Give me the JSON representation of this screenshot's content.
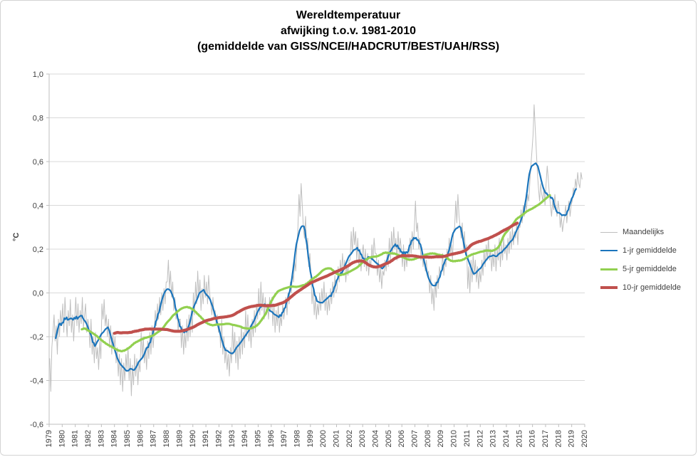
{
  "title_lines": {
    "line1": "Wereldtemperatuur",
    "line2": "afwijking t.o.v. 1981-2010",
    "line3": "(gemiddelde van GISS/NCEI/HADCRUT/BEST/UAH/RSS)"
  },
  "chart_data": {
    "type": "line",
    "title": "Wereldtemperatuur afwijking t.o.v. 1981-2010 (gemiddelde van GISS/NCEI/HADCRUT/BEST/UAH/RSS)",
    "xlabel": "",
    "ylabel": "°C",
    "xlim": [
      1979,
      2020
    ],
    "ylim": [
      -0.6,
      1.0
    ],
    "grid": true,
    "legend_position": "right",
    "x_ticks": [
      "1979",
      "1980",
      "1981",
      "1982",
      "1983",
      "1984",
      "1985",
      "1986",
      "1987",
      "1988",
      "1989",
      "1990",
      "1991",
      "1992",
      "1993",
      "1994",
      "1995",
      "1996",
      "1997",
      "1998",
      "1999",
      "2000",
      "2001",
      "2002",
      "2003",
      "2004",
      "2005",
      "2006",
      "2007",
      "2008",
      "2009",
      "2010",
      "2011",
      "2012",
      "2013",
      "2014",
      "2015",
      "2016",
      "2017",
      "2018",
      "2019",
      "2020"
    ],
    "y_ticks": [
      {
        "value": 1.0,
        "label": "1,0"
      },
      {
        "value": 0.8,
        "label": "0,8"
      },
      {
        "value": 0.6,
        "label": "0,6"
      },
      {
        "value": 0.4,
        "label": "0,4"
      },
      {
        "value": 0.2,
        "label": "0,2"
      },
      {
        "value": 0.0,
        "label": "0,0"
      },
      {
        "value": -0.2,
        "label": "-0,2"
      },
      {
        "value": -0.4,
        "label": "-0,4"
      },
      {
        "value": -0.6,
        "label": "-0,6"
      }
    ],
    "series": [
      {
        "name": "Maandelijks",
        "window_months": 1,
        "color": "#BFBFBF",
        "width": 1
      },
      {
        "name": "1-jr gemiddelde",
        "window_months": 12,
        "color": "#1B75BC",
        "width": 2.2
      },
      {
        "name": "5-jr gemiddelde",
        "window_months": 60,
        "color": "#92D050",
        "width": 3.2
      },
      {
        "name": "10-jr gemiddelde",
        "window_months": 120,
        "color": "#C0504D",
        "width": 4.2
      }
    ],
    "x_start_year": 1979,
    "monthly": [
      -0.3,
      -0.45,
      -0.25,
      -0.18,
      -0.1,
      -0.22,
      -0.15,
      -0.28,
      -0.12,
      -0.2,
      -0.08,
      -0.15,
      -0.05,
      -0.18,
      -0.02,
      -0.12,
      -0.2,
      -0.08,
      -0.15,
      -0.03,
      -0.18,
      -0.1,
      -0.22,
      -0.12,
      -0.02,
      -0.15,
      -0.05,
      -0.18,
      -0.08,
      -0.14,
      -0.02,
      -0.16,
      -0.1,
      -0.05,
      -0.18,
      -0.12,
      -0.15,
      -0.25,
      -0.12,
      -0.28,
      -0.2,
      -0.32,
      -0.18,
      -0.3,
      -0.25,
      -0.35,
      -0.22,
      -0.3,
      -0.05,
      -0.12,
      -0.03,
      -0.15,
      -0.1,
      -0.2,
      -0.12,
      -0.25,
      -0.15,
      -0.28,
      -0.18,
      -0.25,
      -0.2,
      -0.32,
      -0.25,
      -0.38,
      -0.28,
      -0.42,
      -0.3,
      -0.45,
      -0.32,
      -0.4,
      -0.28,
      -0.35,
      -0.25,
      -0.4,
      -0.3,
      -0.47,
      -0.33,
      -0.42,
      -0.28,
      -0.38,
      -0.3,
      -0.42,
      -0.32,
      -0.36,
      -0.18,
      -0.3,
      -0.2,
      -0.32,
      -0.25,
      -0.35,
      -0.22,
      -0.3,
      -0.18,
      -0.28,
      -0.15,
      -0.25,
      -0.18,
      -0.08,
      -0.15,
      -0.05,
      -0.12,
      -0.02,
      -0.1,
      0.0,
      -0.08,
      0.02,
      -0.05,
      0.05,
      0.05,
      0.15,
      0.02,
      0.1,
      -0.02,
      0.05,
      -0.08,
      -0.02,
      -0.12,
      -0.08,
      -0.18,
      -0.12,
      -0.12,
      -0.25,
      -0.15,
      -0.28,
      -0.18,
      -0.25,
      -0.12,
      -0.22,
      -0.1,
      -0.2,
      -0.08,
      -0.18,
      0.0,
      -0.1,
      0.05,
      -0.05,
      0.1,
      -0.02,
      0.06,
      -0.08,
      0.02,
      -0.05,
      0.08,
      -0.02,
      0.05,
      -0.05,
      0.08,
      0.0,
      -0.05,
      -0.1,
      -0.02,
      -0.12,
      -0.08,
      -0.15,
      -0.1,
      -0.18,
      -0.15,
      -0.25,
      -0.12,
      -0.28,
      -0.2,
      -0.32,
      -0.25,
      -0.35,
      -0.28,
      -0.38,
      -0.25,
      -0.32,
      -0.15,
      -0.28,
      -0.18,
      -0.32,
      -0.22,
      -0.35,
      -0.2,
      -0.3,
      -0.15,
      -0.28,
      -0.18,
      -0.25,
      -0.08,
      -0.2,
      -0.1,
      -0.22,
      -0.15,
      -0.25,
      -0.12,
      -0.2,
      -0.08,
      -0.18,
      -0.05,
      -0.12,
      0.02,
      -0.1,
      0.05,
      -0.08,
      0.0,
      -0.12,
      -0.02,
      -0.1,
      -0.05,
      -0.12,
      -0.02,
      -0.08,
      -0.02,
      -0.15,
      -0.05,
      -0.18,
      -0.08,
      -0.15,
      -0.05,
      -0.18,
      -0.1,
      -0.15,
      -0.05,
      -0.12,
      -0.08,
      -0.02,
      -0.1,
      0.0,
      -0.05,
      0.05,
      0.0,
      0.1,
      0.05,
      0.15,
      0.1,
      0.2,
      0.3,
      0.45,
      0.35,
      0.5,
      0.4,
      0.3,
      0.25,
      0.35,
      0.2,
      0.25,
      0.12,
      0.18,
      0.08,
      -0.05,
      0.02,
      -0.1,
      -0.02,
      -0.12,
      -0.05,
      -0.1,
      0.0,
      -0.08,
      0.02,
      -0.05,
      0.05,
      -0.08,
      0.0,
      -0.1,
      -0.02,
      -0.08,
      0.02,
      -0.05,
      0.05,
      -0.02,
      0.08,
      0.0,
      0.02,
      0.12,
      0.05,
      0.15,
      0.08,
      0.18,
      0.1,
      0.15,
      0.05,
      0.12,
      0.08,
      0.15,
      0.15,
      0.28,
      0.18,
      0.3,
      0.22,
      0.28,
      0.15,
      0.25,
      0.12,
      0.2,
      0.1,
      0.18,
      0.22,
      0.12,
      0.2,
      0.1,
      0.18,
      0.08,
      0.15,
      0.12,
      0.22,
      0.15,
      0.25,
      0.18,
      0.18,
      0.08,
      0.15,
      0.05,
      0.12,
      0.02,
      0.1,
      0.08,
      0.15,
      0.1,
      0.18,
      0.12,
      0.25,
      0.15,
      0.28,
      0.18,
      0.3,
      0.2,
      0.25,
      0.15,
      0.28,
      0.18,
      0.25,
      0.2,
      0.12,
      0.22,
      0.1,
      0.18,
      0.12,
      0.2,
      0.15,
      0.25,
      0.18,
      0.28,
      0.2,
      0.3,
      0.42,
      0.28,
      0.32,
      0.2,
      0.25,
      0.15,
      0.2,
      0.12,
      0.18,
      0.1,
      0.15,
      0.08,
      0.1,
      0.0,
      0.08,
      -0.05,
      0.02,
      -0.08,
      0.05,
      -0.02,
      0.08,
      0.02,
      0.12,
      0.08,
      0.1,
      0.18,
      0.08,
      0.15,
      0.12,
      0.2,
      0.15,
      0.25,
      0.18,
      0.22,
      0.15,
      0.28,
      0.3,
      0.42,
      0.32,
      0.45,
      0.35,
      0.3,
      0.25,
      0.32,
      0.2,
      0.28,
      0.18,
      0.22,
      0.02,
      0.12,
      0.0,
      0.15,
      0.05,
      0.18,
      0.08,
      0.15,
      0.05,
      0.12,
      0.02,
      0.1,
      0.05,
      0.15,
      0.08,
      0.2,
      0.12,
      0.22,
      0.15,
      0.25,
      0.15,
      0.2,
      0.1,
      0.18,
      0.12,
      0.22,
      0.1,
      0.2,
      0.15,
      0.25,
      0.12,
      0.22,
      0.15,
      0.25,
      0.18,
      0.22,
      0.15,
      0.25,
      0.18,
      0.28,
      0.2,
      0.3,
      0.22,
      0.28,
      0.25,
      0.32,
      0.22,
      0.3,
      0.3,
      0.38,
      0.32,
      0.4,
      0.35,
      0.42,
      0.38,
      0.45,
      0.42,
      0.5,
      0.58,
      0.65,
      0.72,
      0.86,
      0.75,
      0.65,
      0.55,
      0.48,
      0.42,
      0.5,
      0.45,
      0.42,
      0.48,
      0.4,
      0.5,
      0.58,
      0.52,
      0.45,
      0.4,
      0.35,
      0.42,
      0.38,
      0.45,
      0.4,
      0.35,
      0.42,
      0.38,
      0.3,
      0.35,
      0.28,
      0.32,
      0.35,
      0.4,
      0.32,
      0.38,
      0.42,
      0.35,
      0.4,
      0.42,
      0.48,
      0.45,
      0.52,
      0.48,
      0.55,
      0.5,
      0.48,
      0.55,
      0.52
    ]
  }
}
